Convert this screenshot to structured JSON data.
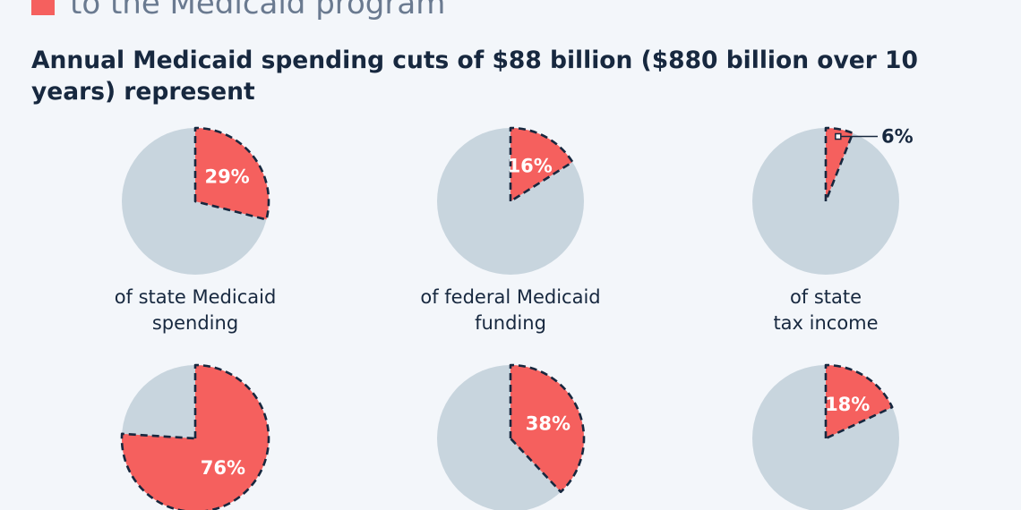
{
  "legend": {
    "label": "to the Medicaid program",
    "color": "#f5605e"
  },
  "headline": "Annual Medicaid spending cuts of $88 billion ($880 billion over 10 years) represent",
  "colors": {
    "highlight": "#f5605e",
    "remainder": "#c8d5de",
    "outline": "#17283f",
    "label_on_slice": "#ffffff",
    "label_outside": "#17283f"
  },
  "chart_data": [
    {
      "type": "pie",
      "title": "",
      "slice_value": 29,
      "label": "29%",
      "caption": [
        "of state Medicaid",
        "spending"
      ]
    },
    {
      "type": "pie",
      "title": "",
      "slice_value": 16,
      "label": "16%",
      "caption": [
        "of federal Medicaid",
        "funding"
      ]
    },
    {
      "type": "pie",
      "title": "",
      "slice_value": 6,
      "label": "6%",
      "caption": [
        "of state",
        "tax income"
      ]
    },
    {
      "type": "pie",
      "title": "",
      "slice_value": 76,
      "label": "76%",
      "caption": []
    },
    {
      "type": "pie",
      "title": "",
      "slice_value": 38,
      "label": "38%",
      "caption": []
    },
    {
      "type": "pie",
      "title": "",
      "slice_value": 18,
      "label": "18%",
      "caption": []
    }
  ]
}
